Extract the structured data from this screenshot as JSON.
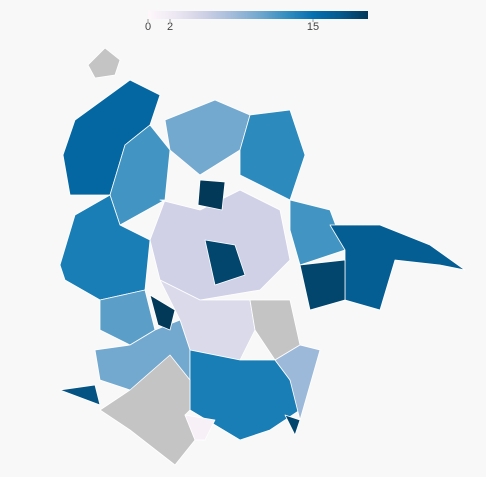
{
  "map": {
    "type": "choropleth",
    "legend": {
      "lim": [
        0,
        20
      ],
      "ticks": [
        0,
        2,
        15
      ],
      "colors": [
        "#fff7fb",
        "#ece7f2",
        "#d0d1e6",
        "#a6bddb",
        "#74a9cf",
        "#3690c0",
        "#0570b0",
        "#045a8d",
        "#023858"
      ]
    },
    "no_data_color": "#c4c4c4",
    "values": [
      16,
      12,
      10,
      13,
      20,
      14,
      11,
      5,
      19,
      12,
      17,
      19,
      null,
      4,
      10,
      20,
      14,
      8,
      null,
      1,
      18,
      null,
      19
    ]
  }
}
